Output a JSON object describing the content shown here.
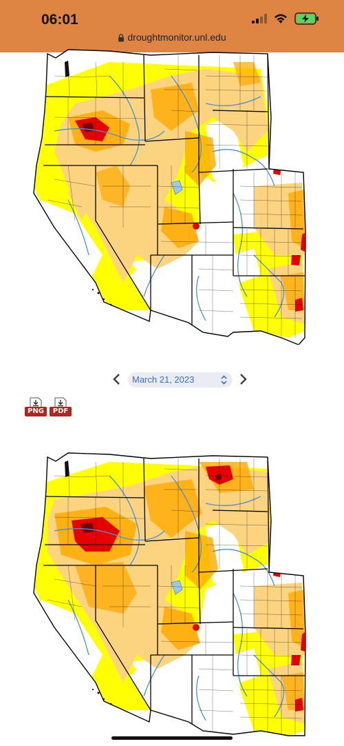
{
  "status_bar": {
    "time": "06:01",
    "url": "droughtmonitor.unl.edu",
    "icons": [
      "signal-icon",
      "wifi-icon",
      "battery-charging-icon"
    ]
  },
  "date_selector": {
    "value": "March 21, 2023"
  },
  "downloads": {
    "png_label": "PNG",
    "pdf_label": "PDF"
  },
  "map_legend_colors": {
    "none": "#ffffff",
    "D0_abnormally_dry": "#ffff00",
    "D1_moderate": "#fcd37f",
    "D2_severe": "#ffaa00",
    "D3_extreme": "#e60000",
    "D4_exceptional": "#730000",
    "water": "#4a90d9",
    "status_bar": "#df8543"
  }
}
